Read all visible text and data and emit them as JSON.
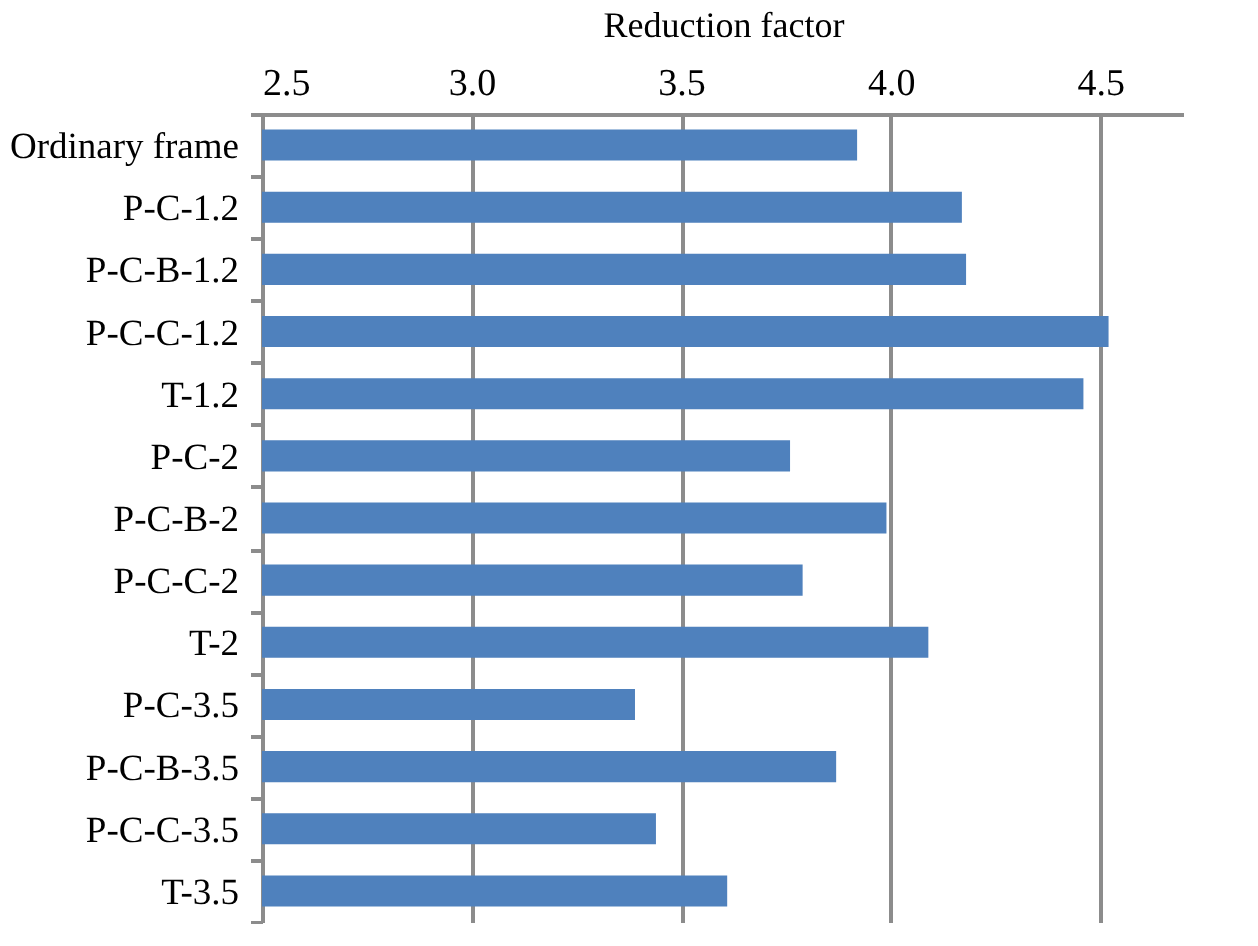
{
  "chart_data": {
    "type": "bar",
    "orientation": "horizontal",
    "xlabel": "Reduction factor",
    "categories": [
      "Ordinary frame",
      "P-C-1.2",
      "P-C-B-1.2",
      "P-C-C-1.2",
      "T-1.2",
      "P-C-2",
      "P-C-B-2",
      "P-C-C-2",
      "T-2",
      "P-C-3.5",
      "P-C-B-3.5",
      "P-C-C-3.5",
      "T-3.5"
    ],
    "values": [
      3.92,
      4.17,
      4.18,
      4.52,
      4.46,
      3.76,
      3.99,
      3.79,
      4.09,
      3.39,
      3.87,
      3.44,
      3.61
    ],
    "color": "#4f81bd",
    "xlim": [
      2.5,
      4.7
    ],
    "xticks": [
      {
        "value": 2.5,
        "label": "2.5"
      },
      {
        "value": 3.0,
        "label": "3.0"
      },
      {
        "value": 3.5,
        "label": "3.5"
      },
      {
        "value": 4.0,
        "label": "4.0"
      },
      {
        "value": 4.5,
        "label": "4.5"
      }
    ],
    "grid": "x"
  }
}
